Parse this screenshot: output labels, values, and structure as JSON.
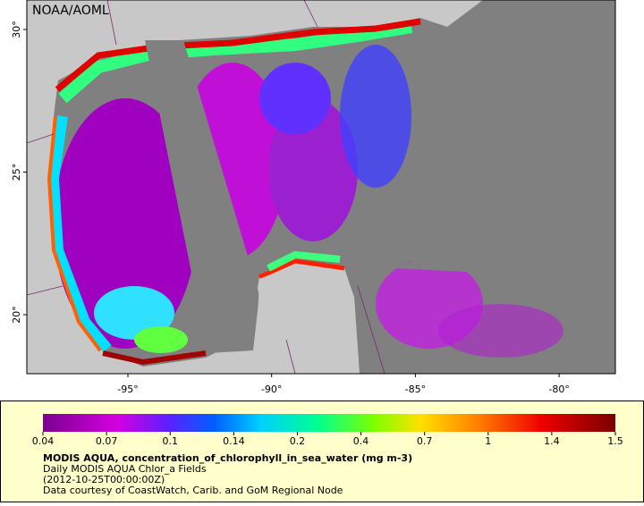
{
  "map": {
    "credit": "NOAA/AOML",
    "lat_labels": [
      "30°",
      "25°",
      "20°"
    ],
    "lon_labels": [
      "-95°",
      "-90°",
      "-85°",
      "-80°"
    ]
  },
  "legend": {
    "ticks": [
      "0.04",
      "0.07",
      "0.1",
      "0.14",
      "0.2",
      "0.4",
      "0.7",
      "1",
      "1.4",
      "1.5"
    ],
    "title": "MODIS AQUA, concentration_of_chlorophyll_in_sea_water (mg m-3)",
    "lines": [
      "Daily MODIS AQUA Chlor_a Fields",
      "(2012-10-25T00:00:00Z)",
      "Data courtesy of CoastWatch, Carib. and GoM Regional Node"
    ]
  }
}
